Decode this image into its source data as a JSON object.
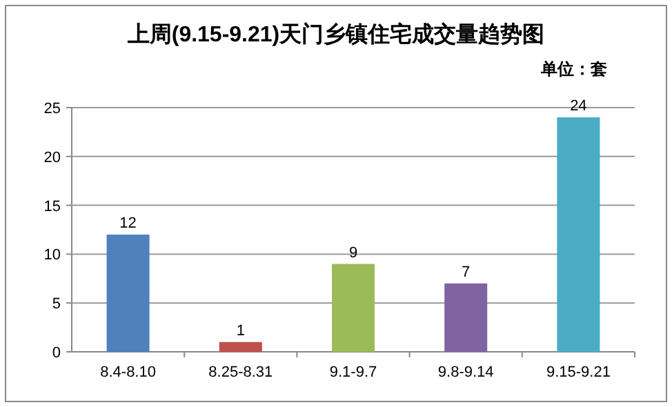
{
  "chart_data": {
    "type": "bar",
    "title": "上周(9.15-9.21)天门乡镇住宅成交量趋势图",
    "subtitle": "单位：套",
    "categories": [
      "8.4-8.10",
      "8.25-8.31",
      "9.1-9.7",
      "9.8-9.14",
      "9.15-9.21"
    ],
    "values": [
      12,
      1,
      9,
      7,
      24
    ],
    "colors": [
      "#4f81bd",
      "#c0504d",
      "#9bbb59",
      "#8064a2",
      "#4bacc6"
    ],
    "ylim": [
      0,
      25
    ],
    "yticks": [
      0,
      5,
      10,
      15,
      20,
      25
    ],
    "grid": "y",
    "data_labels": true
  }
}
